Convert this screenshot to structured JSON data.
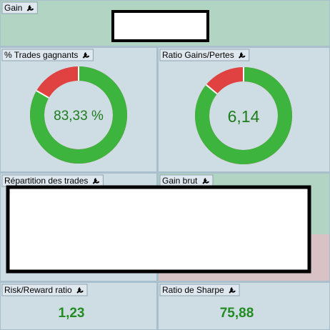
{
  "panels": [
    {
      "title": "Gain"
    },
    {
      "title": "% Trades gagnants",
      "donut": "percent",
      "value": 83.33,
      "value_label": "83,33 %"
    },
    {
      "title": "Ratio Gains/Pertes",
      "donut": "ratio",
      "value": 6.14,
      "value_label": "6,14"
    },
    {
      "title": "Répartition des trades"
    },
    {
      "title": "Gain brut"
    },
    {
      "title": "Risk/Reward ratio",
      "value": "1,23"
    },
    {
      "title": "Ratio de Sharpe",
      "value": "75,88"
    }
  ]
}
